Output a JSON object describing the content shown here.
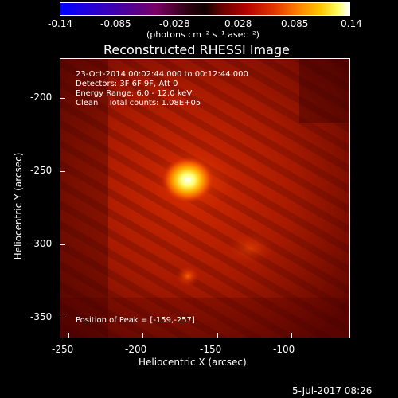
{
  "colorbar": {
    "tick_labels": [
      "-0.14",
      "-0.085",
      "-0.028",
      "0.028",
      "0.085",
      "0.14"
    ],
    "unit_label": "(photons cm⁻² s⁻¹ asec⁻²)",
    "min": -0.14,
    "max": 0.14
  },
  "title": "Reconstructed RHESSI Image",
  "info": {
    "line1": "23-Oct-2014 00:02:44.000 to 00:12:44.000",
    "line2": "Detectors: 3F 6F 9F, Att 0",
    "line3": "Energy Range: 6.0 - 12.0 keV",
    "line4": "Clean    Total counts: 1.08E+05"
  },
  "peak_label": "Position of Peak = [-159,-257]",
  "axes": {
    "xlabel": "Heliocentric X (arcsec)",
    "ylabel": "Heliocentric Y (arcsec)",
    "xticks": [
      "-250",
      "-200",
      "-150",
      "-100"
    ],
    "yticks": [
      "-200",
      "-250",
      "-300",
      "-350"
    ],
    "xlim": [
      -255,
      -60
    ],
    "ylim": [
      -368,
      -177
    ]
  },
  "footer_date": "5-Jul-2017 08:26"
}
